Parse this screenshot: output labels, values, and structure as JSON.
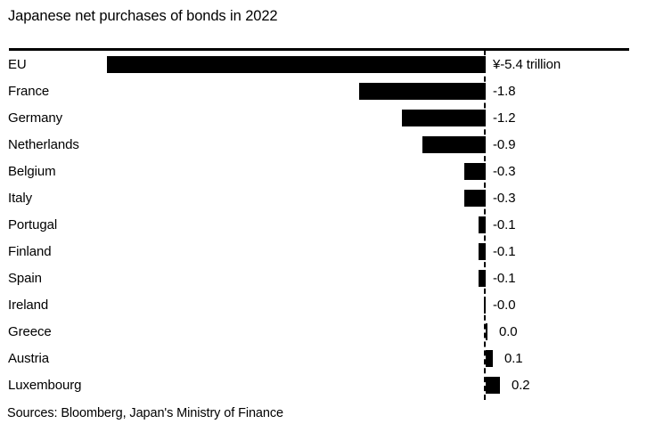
{
  "title": "Japanese net purchases of bonds in 2022",
  "source": "Sources: Bloomberg, Japan's Ministry of Finance",
  "colors": {
    "bar": "#000000",
    "text": "#000000",
    "background": "#ffffff",
    "rule": "#000000",
    "zero_line": "#000000"
  },
  "chart_data": {
    "type": "bar",
    "orientation": "horizontal",
    "title": "Japanese net purchases of bonds in 2022",
    "unit": "¥ trillion",
    "categories": [
      "EU",
      "France",
      "Germany",
      "Netherlands",
      "Belgium",
      "Italy",
      "Portugal",
      "Finland",
      "Spain",
      "Ireland",
      "Greece",
      "Austria",
      "Luxembourg"
    ],
    "values": [
      -5.4,
      -1.8,
      -1.2,
      -0.9,
      -0.3,
      -0.3,
      -0.1,
      -0.1,
      -0.1,
      -0.0,
      0.0,
      0.1,
      0.2
    ],
    "value_labels": [
      "¥-5.4 trillion",
      "-1.8",
      "-1.2",
      "-0.9",
      "-0.3",
      "-0.3",
      "-0.1",
      "-0.1",
      "-0.1",
      "-0.0",
      "0.0",
      "0.1",
      "0.2"
    ],
    "xlabel": "",
    "ylabel": "",
    "xlim": [
      -6.8,
      2.0
    ],
    "grid": false,
    "legend": false,
    "zero_baseline": "dashed vertical line at 0"
  }
}
